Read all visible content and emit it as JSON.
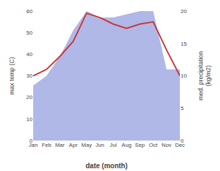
{
  "chart_data": {
    "type": "line",
    "xlabel": "date (month)",
    "ylabel": "max temp (C)",
    "y2label": "med. precipitation\n(kg/m2)",
    "categories": [
      "Jan",
      "Feb",
      "Mar",
      "Apr",
      "May",
      "Jun",
      "Jul",
      "Aug",
      "Sep",
      "Oct",
      "Nov",
      "Dec"
    ],
    "series": [
      {
        "type": "area",
        "color": "#b0b8e8",
        "axis": "y2",
        "values": [
          8.5,
          10,
          13,
          17,
          20,
          19,
          19,
          19.5,
          20,
          20,
          11,
          11
        ]
      },
      {
        "type": "line",
        "color": "#cc3333",
        "values": [
          30,
          33,
          39,
          46,
          59,
          57,
          54,
          52,
          54,
          55,
          42,
          30
        ]
      }
    ],
    "ylim": [
      0,
      60
    ],
    "yticks": [
      0,
      10,
      20,
      30,
      40,
      50,
      60
    ],
    "y2lim": [
      0,
      20
    ],
    "y2ticks": [
      0,
      5,
      10,
      15,
      20
    ],
    "grid": false
  }
}
